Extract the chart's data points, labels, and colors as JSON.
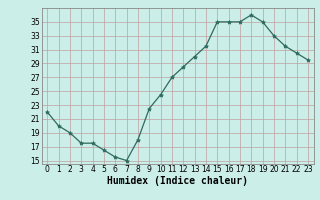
{
  "x": [
    0,
    1,
    2,
    3,
    4,
    5,
    6,
    7,
    8,
    9,
    10,
    11,
    12,
    13,
    14,
    15,
    16,
    17,
    18,
    19,
    20,
    21,
    22,
    23
  ],
  "y": [
    22,
    20,
    19,
    17.5,
    17.5,
    16.5,
    15.5,
    15,
    18,
    22.5,
    24.5,
    27,
    28.5,
    30,
    31.5,
    35,
    35,
    35,
    36,
    35,
    33,
    31.5,
    30.5,
    29.5
  ],
  "line_color": "#2d6b5e",
  "marker": "*",
  "marker_size": 3,
  "bg_color": "#cceee8",
  "grid_color": "#c0a0a0",
  "xlabel": "Humidex (Indice chaleur)",
  "xlim": [
    -0.5,
    23.5
  ],
  "ylim": [
    14.5,
    37
  ],
  "yticks": [
    15,
    17,
    19,
    21,
    23,
    25,
    27,
    29,
    31,
    33,
    35
  ],
  "xticks": [
    0,
    1,
    2,
    3,
    4,
    5,
    6,
    7,
    8,
    9,
    10,
    11,
    12,
    13,
    14,
    15,
    16,
    17,
    18,
    19,
    20,
    21,
    22,
    23
  ],
  "tick_fontsize": 5.5,
  "xlabel_fontsize": 7
}
